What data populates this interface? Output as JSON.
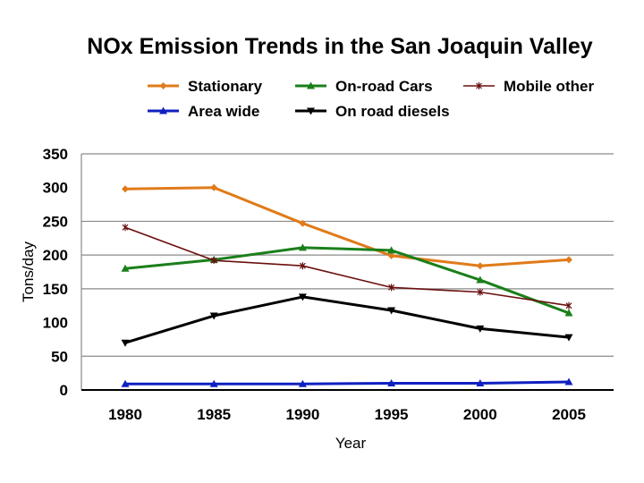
{
  "chart_data": {
    "type": "line",
    "title": "NOx Emission Trends in the San Joaquin Valley",
    "xlabel": "Year",
    "ylabel": "Tons/day",
    "x": [
      "1980",
      "1985",
      "1990",
      "1995",
      "2000",
      "2005"
    ],
    "yticks": [
      "0",
      "50",
      "100",
      "150",
      "200",
      "250",
      "300",
      "350"
    ],
    "ylim": [
      0,
      350
    ],
    "gridlines": [
      50,
      150,
      200,
      250,
      350
    ],
    "legend_position": "top",
    "series": [
      {
        "name": "Stationary",
        "color": "#E07B1A",
        "marker": "diamond",
        "values": [
          298,
          300,
          247,
          199,
          184,
          193
        ]
      },
      {
        "name": "On-road Cars",
        "color": "#1A7F1A",
        "marker": "triangle",
        "values": [
          180,
          193,
          211,
          207,
          163,
          114
        ]
      },
      {
        "name": "Mobile other",
        "color": "#6B0F0F",
        "marker": "star",
        "values": [
          241,
          192,
          184,
          152,
          145,
          125
        ]
      },
      {
        "name": "Area wide",
        "color": "#1020C0",
        "marker": "triangle",
        "values": [
          9,
          9,
          9,
          10,
          10,
          12
        ]
      },
      {
        "name": "On road diesels",
        "color": "#000000",
        "marker": "triangle-down",
        "values": [
          70,
          110,
          138,
          118,
          91,
          78
        ]
      }
    ]
  }
}
